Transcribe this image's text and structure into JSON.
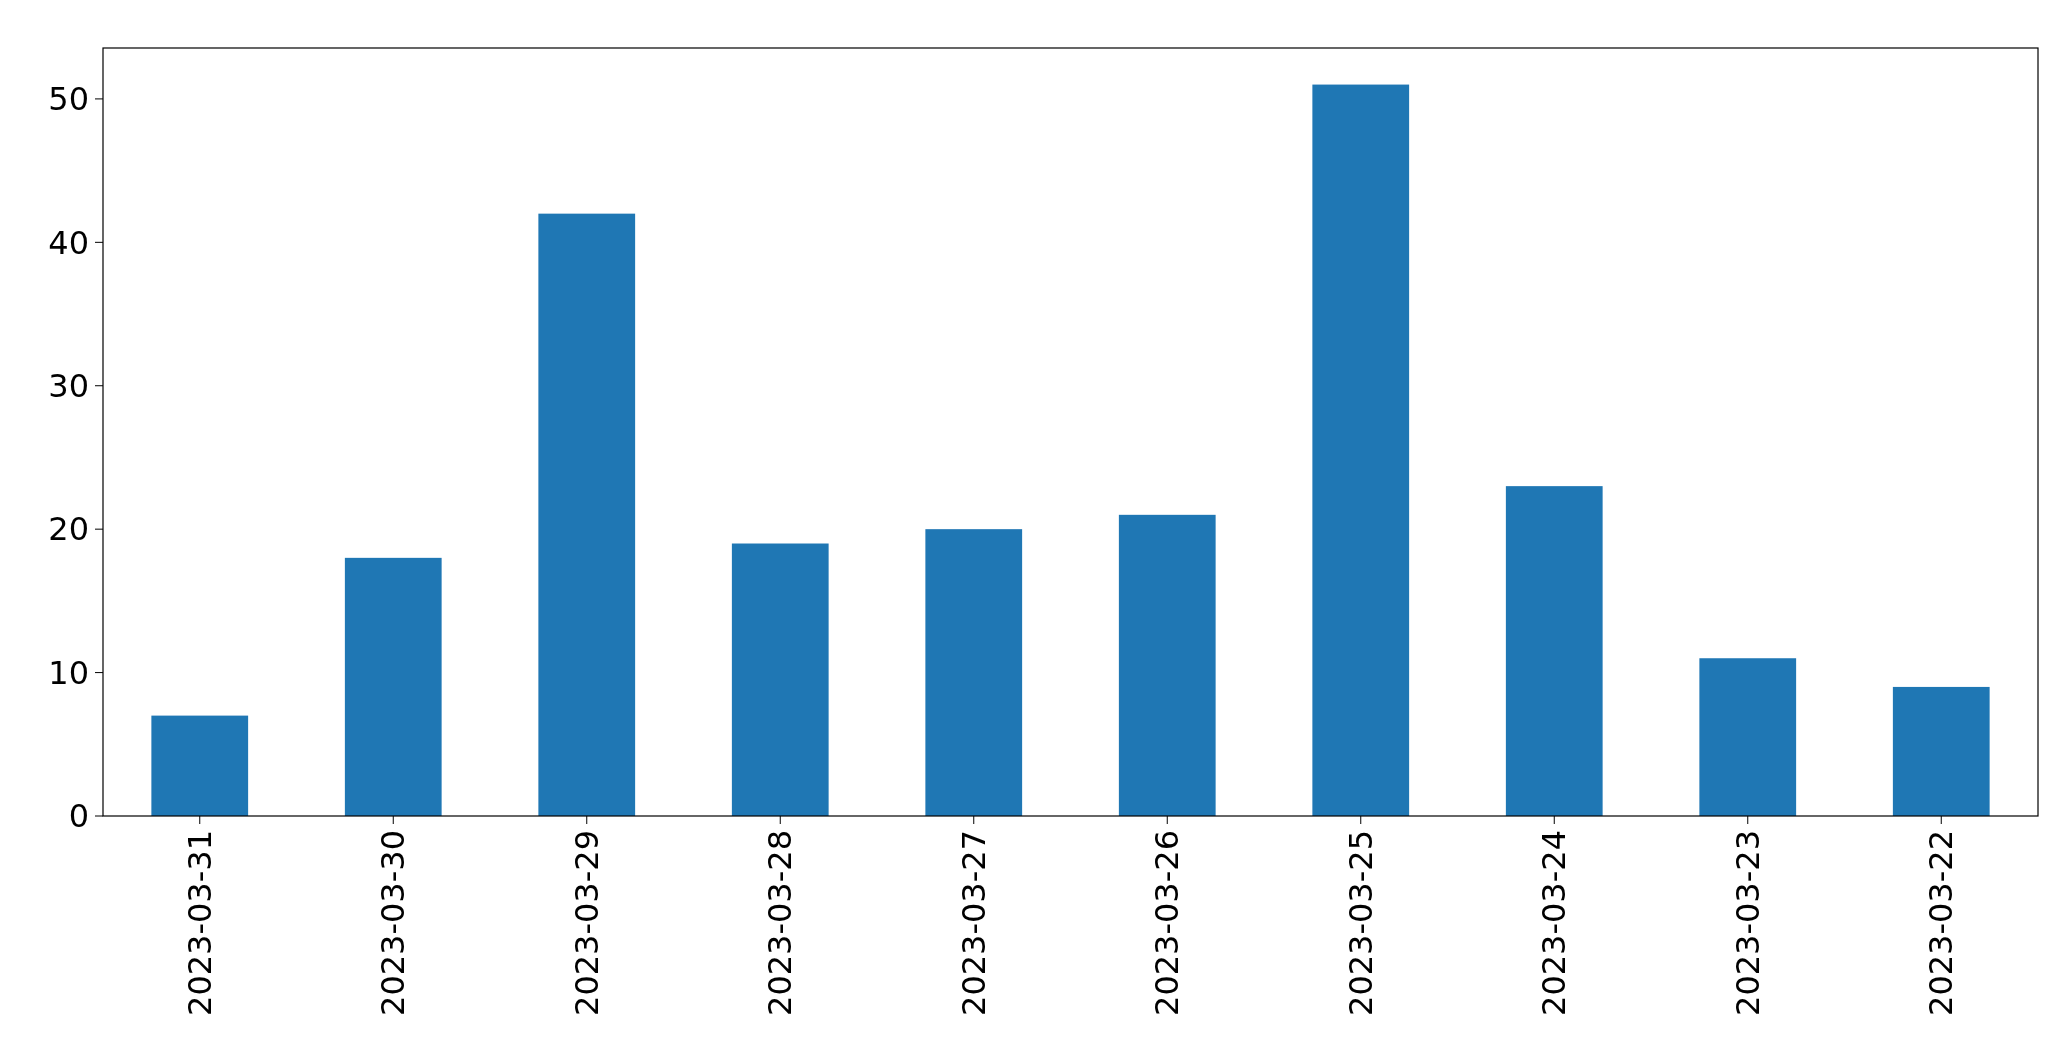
{
  "chart_data": {
    "type": "bar",
    "categories": [
      "2023-03-31",
      "2023-03-30",
      "2023-03-29",
      "2023-03-28",
      "2023-03-27",
      "2023-03-26",
      "2023-03-25",
      "2023-03-24",
      "2023-03-23",
      "2023-03-22"
    ],
    "values": [
      7,
      18,
      42,
      19,
      20,
      21,
      51,
      23,
      11,
      9
    ],
    "color": "#1f77b4",
    "ylim": [
      0,
      53.55
    ],
    "yticks": [
      0,
      10,
      20,
      30,
      40,
      50
    ],
    "grid": false
  }
}
